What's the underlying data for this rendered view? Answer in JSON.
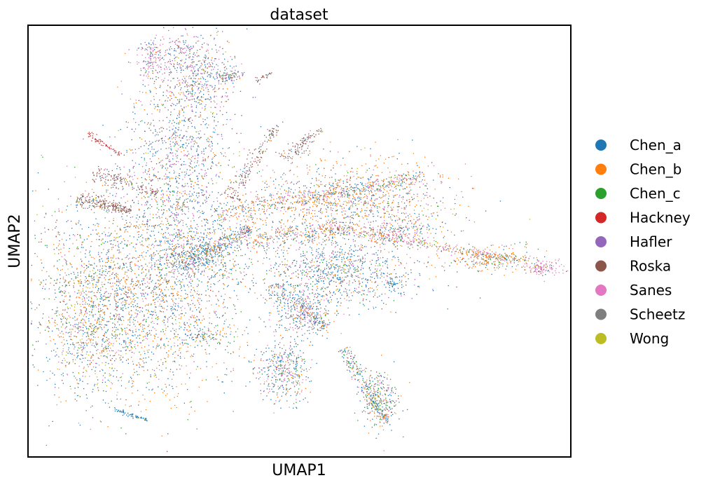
{
  "chart_data": {
    "type": "scatter",
    "title": "dataset",
    "xlabel": "UMAP1",
    "ylabel": "UMAP2",
    "grid": false,
    "ticks": false,
    "xlim": [
      0,
      100
    ],
    "ylim": [
      0,
      100
    ],
    "legend": {
      "placement": "right-outside"
    },
    "series": [
      {
        "name": "Chen_a",
        "color": "#1f77b4"
      },
      {
        "name": "Chen_b",
        "color": "#ff7f0e"
      },
      {
        "name": "Chen_c",
        "color": "#2ca02c"
      },
      {
        "name": "Hackney",
        "color": "#d62728"
      },
      {
        "name": "Hafler",
        "color": "#9467bd"
      },
      {
        "name": "Roska",
        "color": "#8c564b"
      },
      {
        "name": "Sanes",
        "color": "#e377c2"
      },
      {
        "name": "Scheetz",
        "color": "#7f7f7f"
      },
      {
        "name": "Wong",
        "color": "#bcbd22"
      }
    ],
    "clusters": [
      {
        "cx": 20,
        "cy": 38,
        "sx": 10,
        "sy": 12,
        "n": 2600,
        "w": [
          0.33,
          0.3,
          0.08,
          0.01,
          0.07,
          0.07,
          0.06,
          0.02,
          0.06
        ]
      },
      {
        "cx": 12,
        "cy": 30,
        "sx": 4,
        "sy": 8,
        "n": 500,
        "w": [
          0.25,
          0.25,
          0.1,
          0.0,
          0.05,
          0.05,
          0.1,
          0.02,
          0.18
        ]
      },
      {
        "cx": 28,
        "cy": 67,
        "sx": 5,
        "sy": 14,
        "n": 1300,
        "w": [
          0.36,
          0.12,
          0.06,
          0.0,
          0.16,
          0.12,
          0.12,
          0.03,
          0.03
        ]
      },
      {
        "cx": 31,
        "cy": 88,
        "sx": 4,
        "sy": 5,
        "n": 500,
        "w": [
          0.32,
          0.1,
          0.05,
          0.0,
          0.12,
          0.15,
          0.2,
          0.03,
          0.03
        ]
      },
      {
        "cx": 23,
        "cy": 92,
        "sx": 1.3,
        "sy": 2.5,
        "n": 150,
        "w": [
          0.1,
          0.05,
          0.02,
          0.0,
          0.15,
          0.1,
          0.55,
          0.02,
          0.01
        ]
      },
      {
        "cx": 37,
        "cy": 88,
        "sx": 1.2,
        "sy": 0.7,
        "n": 70,
        "w": [
          0.1,
          0.05,
          0.02,
          0.0,
          0.1,
          0.1,
          0.1,
          0.52,
          0.01
        ]
      },
      {
        "cx": 28,
        "cy": 95,
        "sx": 1.5,
        "sy": 0.6,
        "n": 40,
        "w": [
          0.1,
          0.02,
          0.02,
          0.0,
          0.05,
          0.05,
          0.3,
          0.45,
          0.01
        ]
      },
      {
        "cx": 60,
        "cy": 59,
        "sx": 9,
        "sy": 5,
        "n": 1200,
        "w": [
          0.22,
          0.32,
          0.07,
          0.0,
          0.03,
          0.14,
          0.14,
          0.02,
          0.06
        ]
      },
      {
        "cx": 57,
        "cy": 43,
        "sx": 7,
        "sy": 4,
        "n": 900,
        "w": [
          0.45,
          0.12,
          0.08,
          0.0,
          0.05,
          0.1,
          0.15,
          0.02,
          0.03
        ]
      },
      {
        "cx": 51,
        "cy": 33,
        "sx": 3,
        "sy": 3,
        "n": 300,
        "w": [
          0.4,
          0.12,
          0.08,
          0.0,
          0.03,
          0.1,
          0.22,
          0.02,
          0.03
        ]
      },
      {
        "cx": 47,
        "cy": 20,
        "sx": 2.5,
        "sy": 3.5,
        "n": 400,
        "w": [
          0.4,
          0.14,
          0.1,
          0.0,
          0.03,
          0.08,
          0.2,
          0.02,
          0.03
        ]
      },
      {
        "cx": 65,
        "cy": 13,
        "sx": 1.8,
        "sy": 3.5,
        "n": 300,
        "w": [
          0.35,
          0.16,
          0.18,
          0.0,
          0.03,
          0.1,
          0.14,
          0.02,
          0.02
        ]
      },
      {
        "cx": 33,
        "cy": 28,
        "sx": 2,
        "sy": 0.8,
        "n": 80,
        "w": [
          0.3,
          0.3,
          0.15,
          0.0,
          0.05,
          0.05,
          0.05,
          0.02,
          0.08
        ]
      },
      {
        "cx": 85,
        "cy": 46,
        "sx": 4,
        "sy": 1.4,
        "n": 300,
        "w": [
          0.1,
          0.5,
          0.15,
          0.0,
          0.02,
          0.05,
          0.12,
          0.02,
          0.04
        ]
      },
      {
        "cx": 95,
        "cy": 44,
        "sx": 1.8,
        "sy": 1,
        "n": 130,
        "w": [
          0.05,
          0.2,
          0.05,
          0.0,
          0.05,
          0.05,
          0.58,
          0.01,
          0.01
        ]
      },
      {
        "cx": 68,
        "cy": 52,
        "sx": 3,
        "sy": 1.5,
        "n": 150,
        "w": [
          0.2,
          0.3,
          0.05,
          0.0,
          0.05,
          0.15,
          0.2,
          0.02,
          0.03
        ]
      },
      {
        "cx": 31,
        "cy": 47,
        "sx": 4,
        "sy": 3,
        "n": 350,
        "w": [
          0.62,
          0.1,
          0.05,
          0.0,
          0.04,
          0.06,
          0.08,
          0.02,
          0.03
        ]
      },
      {
        "cx": 67,
        "cy": 40,
        "sx": 0.7,
        "sy": 0.8,
        "n": 40,
        "w": [
          0.85,
          0.05,
          0.02,
          0.0,
          0.02,
          0.02,
          0.02,
          0.01,
          0.01
        ]
      }
    ],
    "streaks": [
      {
        "x0": 9,
        "y0": 60,
        "x1": 19,
        "y1": 57,
        "width": 1.0,
        "n": 230,
        "w": [
          0.05,
          0.03,
          0.02,
          0.0,
          0.03,
          0.82,
          0.03,
          0.01,
          0.01
        ]
      },
      {
        "x0": 12,
        "y0": 66,
        "x1": 24,
        "y1": 61,
        "width": 1.0,
        "n": 160,
        "w": [
          0.05,
          0.03,
          0.02,
          0.0,
          0.03,
          0.82,
          0.03,
          0.01,
          0.01
        ]
      },
      {
        "x0": 11,
        "y0": 75,
        "x1": 17,
        "y1": 70,
        "width": 0.4,
        "n": 60,
        "w": [
          0.0,
          0.0,
          0.0,
          1.0,
          0.0,
          0.0,
          0.0,
          0.0,
          0.0
        ]
      },
      {
        "x0": 37,
        "y0": 60,
        "x1": 46,
        "y1": 77,
        "width": 1.0,
        "n": 160,
        "w": [
          0.1,
          0.05,
          0.02,
          0.0,
          0.03,
          0.75,
          0.03,
          0.01,
          0.01
        ]
      },
      {
        "x0": 47,
        "y0": 69,
        "x1": 54,
        "y1": 76,
        "width": 0.9,
        "n": 110,
        "w": [
          0.08,
          0.05,
          0.02,
          0.0,
          0.03,
          0.78,
          0.02,
          0.01,
          0.01
        ]
      },
      {
        "x0": 42,
        "y0": 87,
        "x1": 45,
        "y1": 89,
        "width": 0.3,
        "n": 25,
        "w": [
          0.05,
          0.0,
          0.0,
          0.0,
          0.0,
          0.95,
          0.0,
          0.0,
          0.0
        ]
      },
      {
        "x0": 35,
        "y0": 56,
        "x1": 73,
        "y1": 65,
        "width": 1.6,
        "n": 500,
        "w": [
          0.26,
          0.36,
          0.05,
          0.0,
          0.03,
          0.08,
          0.14,
          0.02,
          0.06
        ]
      },
      {
        "x0": 40,
        "y0": 50,
        "x1": 60,
        "y1": 53,
        "width": 1.8,
        "n": 350,
        "w": [
          0.22,
          0.32,
          0.05,
          0.0,
          0.03,
          0.1,
          0.2,
          0.03,
          0.05
        ]
      },
      {
        "x0": 60,
        "y0": 52,
        "x1": 88,
        "y1": 46,
        "width": 0.9,
        "n": 260,
        "w": [
          0.12,
          0.3,
          0.1,
          0.0,
          0.02,
          0.05,
          0.35,
          0.02,
          0.04
        ]
      },
      {
        "x0": 28,
        "y0": 44,
        "x1": 41,
        "y1": 53,
        "width": 1.4,
        "n": 320,
        "w": [
          0.55,
          0.1,
          0.05,
          0.0,
          0.05,
          0.08,
          0.12,
          0.02,
          0.03
        ]
      },
      {
        "x0": 58,
        "y0": 25,
        "x1": 66,
        "y1": 8,
        "width": 0.9,
        "n": 220,
        "w": [
          0.4,
          0.16,
          0.18,
          0.0,
          0.03,
          0.1,
          0.1,
          0.02,
          0.01
        ]
      },
      {
        "x0": 16,
        "y0": 11,
        "x1": 22,
        "y1": 8.5,
        "width": 0.3,
        "n": 60,
        "w": [
          0.9,
          0.02,
          0.03,
          0.0,
          0.02,
          0.01,
          0.01,
          0.0,
          0.01
        ]
      },
      {
        "x0": 45,
        "y0": 40,
        "x1": 55,
        "y1": 30,
        "width": 1.5,
        "n": 220,
        "w": [
          0.5,
          0.1,
          0.08,
          0.0,
          0.04,
          0.08,
          0.15,
          0.02,
          0.03
        ]
      }
    ]
  }
}
